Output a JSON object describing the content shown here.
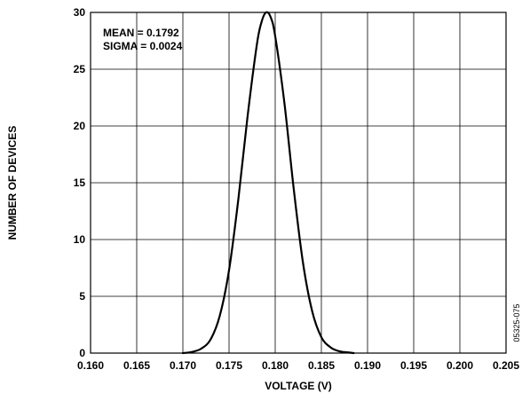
{
  "chart_data": {
    "type": "line",
    "title": "",
    "xlabel": "VOLTAGE (V)",
    "ylabel": "NUMBER OF DEVICES",
    "xlim": [
      0.16,
      0.205
    ],
    "ylim": [
      0,
      30
    ],
    "x_ticks": [
      "0.160",
      "0.165",
      "0.170",
      "0.175",
      "0.180",
      "0.185",
      "0.190",
      "0.195",
      "0.200",
      "0.205"
    ],
    "y_ticks": [
      "0",
      "5",
      "10",
      "15",
      "20",
      "25",
      "30"
    ],
    "grid": true,
    "annotations": [
      "MEAN = 0.1792",
      "SIGMA = 0.0024"
    ],
    "figure_id": "05325-075",
    "series": [
      {
        "color": "#000000",
        "x": [
          0.17,
          0.171,
          0.172,
          0.173,
          0.174,
          0.175,
          0.176,
          0.177,
          0.178,
          0.1785,
          0.179,
          0.1795,
          0.18,
          0.181,
          0.182,
          0.183,
          0.184,
          0.185,
          0.186,
          0.187,
          0.188,
          0.1885
        ],
        "y": [
          0.0,
          0.1,
          0.4,
          1.2,
          3.3,
          7.3,
          13.5,
          20.8,
          27.1,
          29.1,
          30.0,
          29.6,
          27.9,
          22.0,
          14.5,
          8.0,
          3.7,
          1.4,
          0.5,
          0.15,
          0.05,
          0.0
        ]
      }
    ]
  }
}
